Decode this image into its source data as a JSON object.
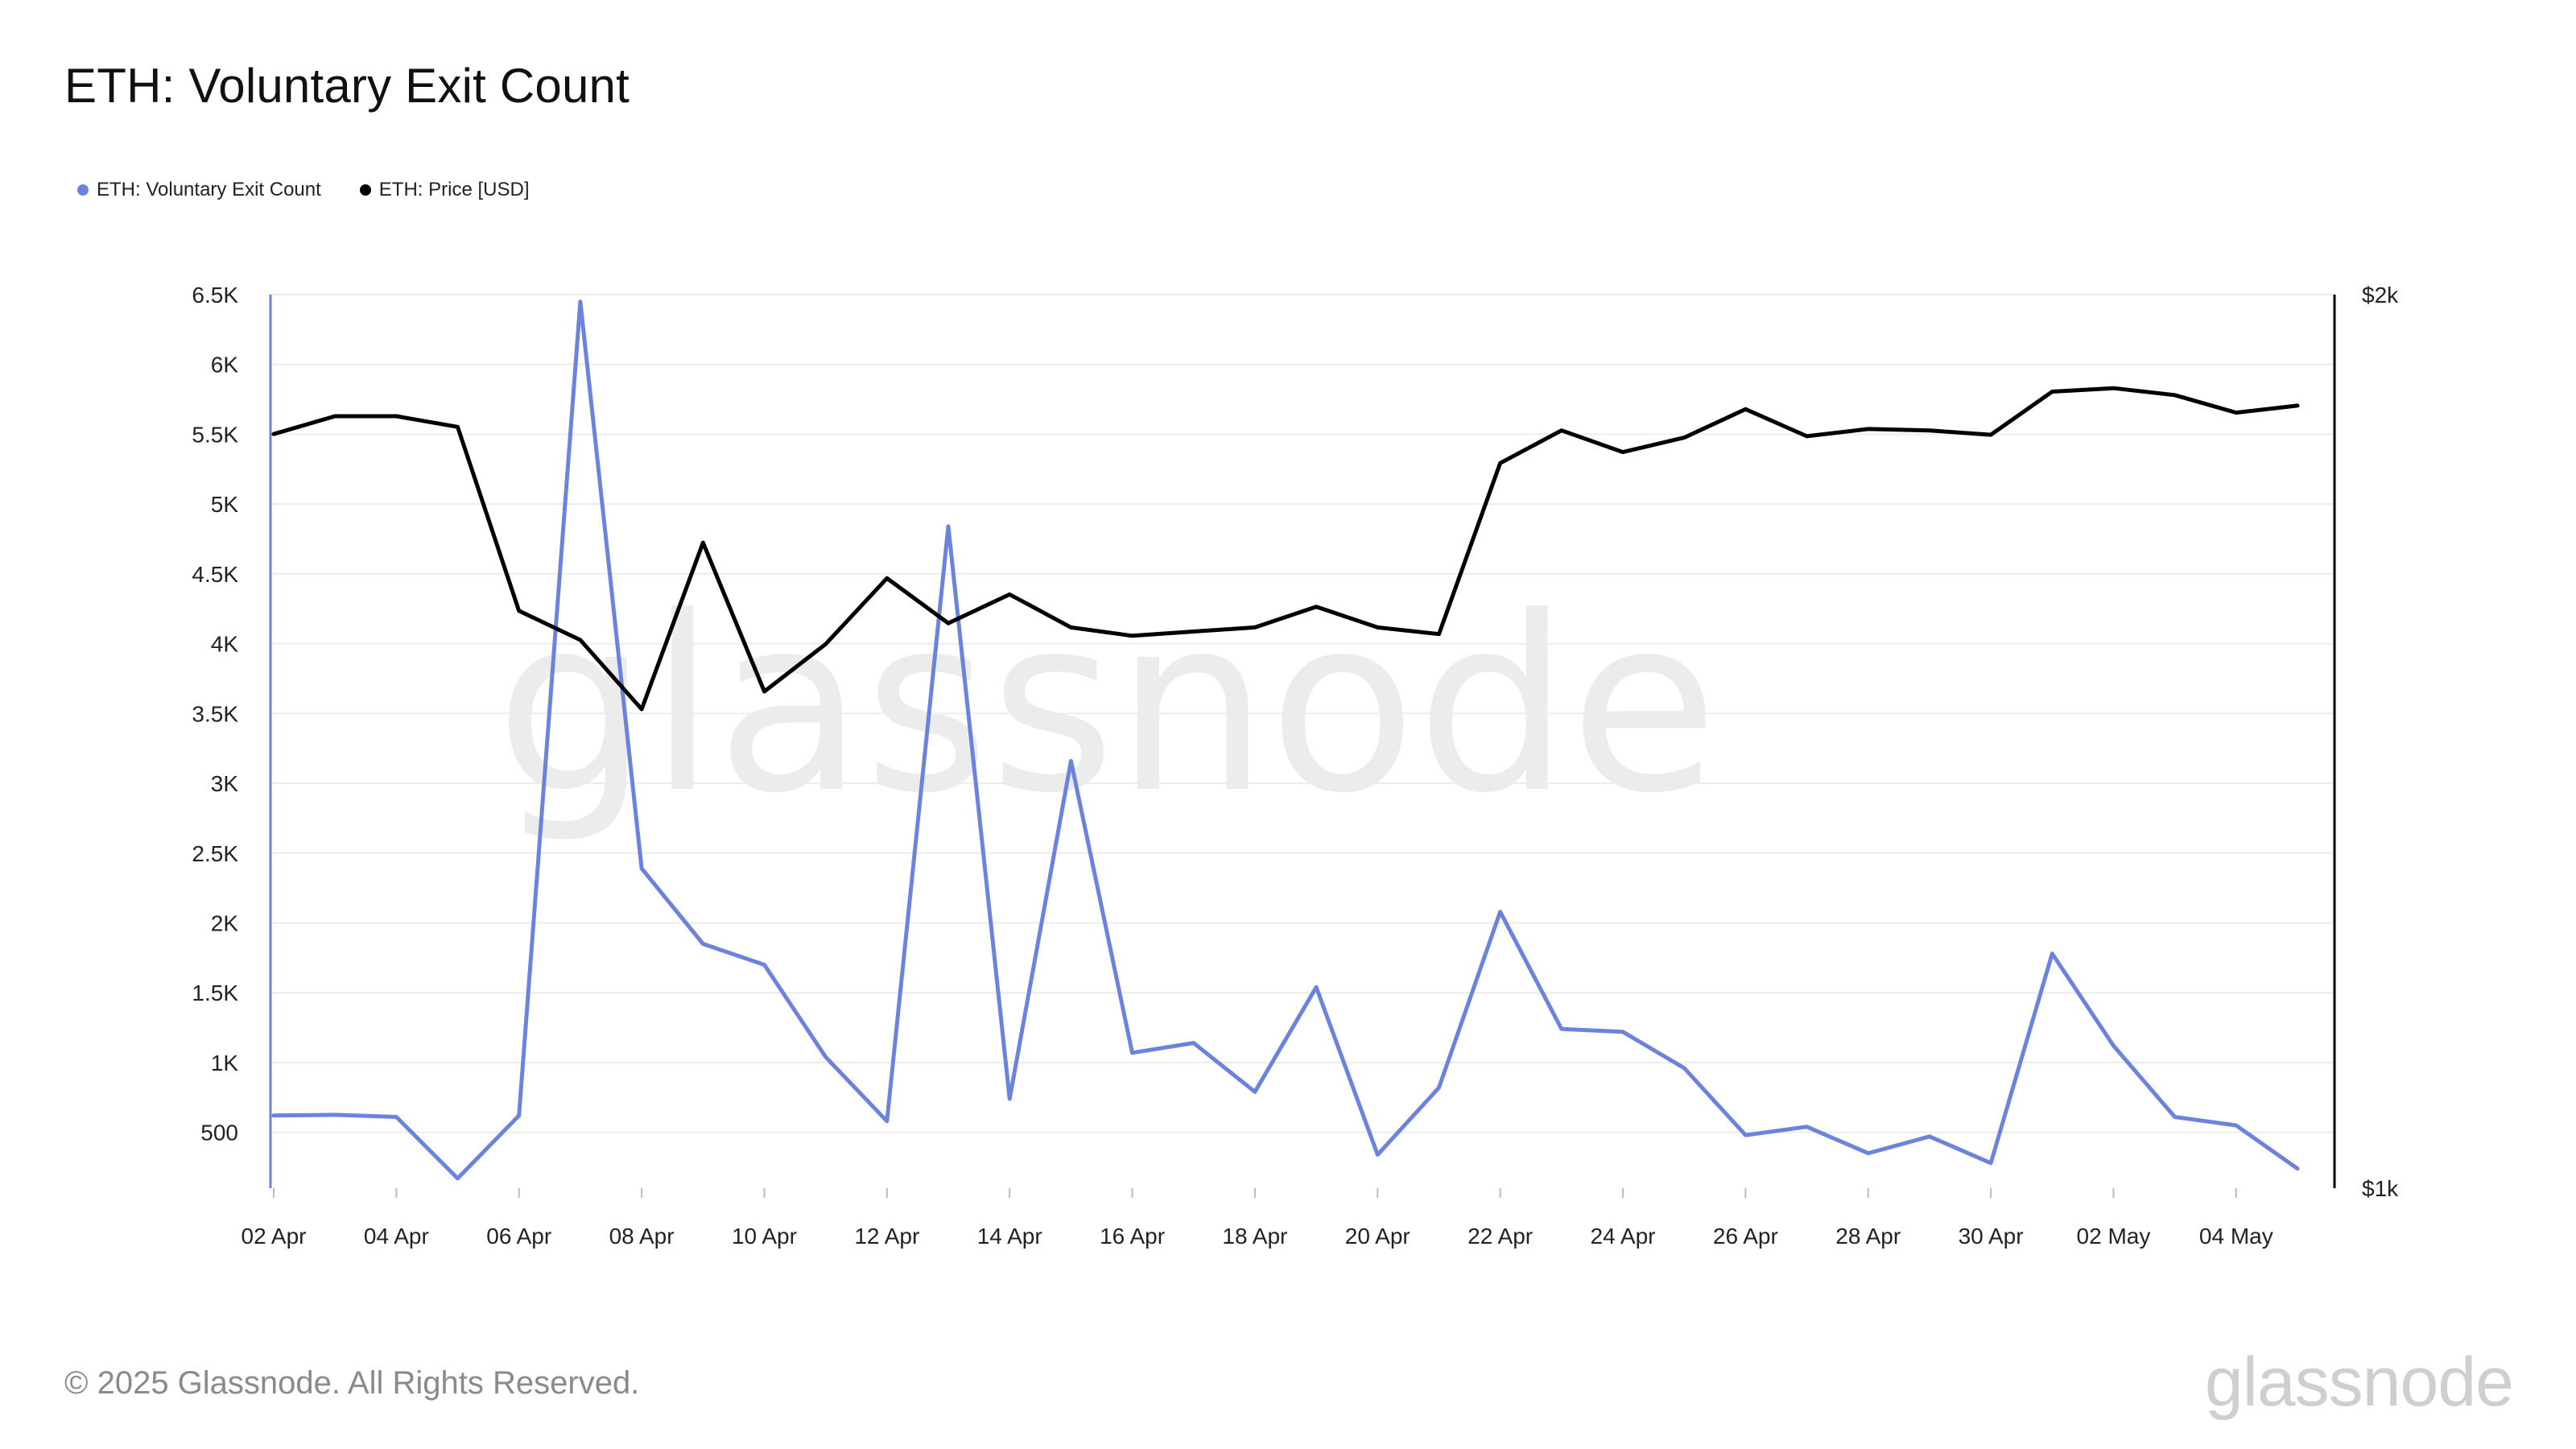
{
  "title": "ETH: Voluntary Exit Count",
  "legend": [
    {
      "label": "ETH: Voluntary Exit Count",
      "color": "#6b83dc"
    },
    {
      "label": "ETH: Price [USD]",
      "color": "#000000"
    }
  ],
  "watermark": "glassnode",
  "footer": {
    "copyright": "© 2025 Glassnode. All Rights Reserved.",
    "brand": "glassnode"
  },
  "chart_data": {
    "type": "line",
    "x": [
      "2025-04-02",
      "2025-04-03",
      "2025-04-04",
      "2025-04-05",
      "2025-04-06",
      "2025-04-07",
      "2025-04-08",
      "2025-04-09",
      "2025-04-10",
      "2025-04-11",
      "2025-04-12",
      "2025-04-13",
      "2025-04-14",
      "2025-04-15",
      "2025-04-16",
      "2025-04-17",
      "2025-04-18",
      "2025-04-19",
      "2025-04-20",
      "2025-04-21",
      "2025-04-22",
      "2025-04-23",
      "2025-04-24",
      "2025-04-25",
      "2025-04-26",
      "2025-04-27",
      "2025-04-28",
      "2025-04-29",
      "2025-04-30",
      "2025-05-01",
      "2025-05-02",
      "2025-05-03",
      "2025-05-04",
      "2025-05-05"
    ],
    "x_tick_labels": [
      "02 Apr",
      "04 Apr",
      "06 Apr",
      "08 Apr",
      "10 Apr",
      "12 Apr",
      "14 Apr",
      "16 Apr",
      "18 Apr",
      "20 Apr",
      "22 Apr",
      "24 Apr",
      "26 Apr",
      "28 Apr",
      "30 Apr",
      "02 May",
      "04 May"
    ],
    "y_left": {
      "ticks": [
        500,
        1000,
        1500,
        2000,
        2500,
        3000,
        3500,
        4000,
        4500,
        5000,
        5500,
        6000,
        6500
      ],
      "tick_labels": [
        "500",
        "1K",
        "1.5K",
        "2K",
        "2.5K",
        "3K",
        "3.5K",
        "4K",
        "4.5K",
        "5K",
        "5.5K",
        "6K",
        "6.5K"
      ],
      "range": [
        100,
        6500
      ]
    },
    "y_right": {
      "scale": "log",
      "ticks": [
        1000,
        2000
      ],
      "tick_labels": [
        "$1k",
        "$2k"
      ],
      "range": [
        1000,
        2000
      ]
    },
    "grid": true,
    "legend_position": "top-left",
    "series": [
      {
        "name": "ETH: Voluntary Exit Count",
        "axis": "left",
        "color": "#6b83dc",
        "values": [
          620,
          625,
          610,
          170,
          620,
          6450,
          2390,
          1850,
          1700,
          1040,
          580,
          4840,
          740,
          3160,
          1070,
          1140,
          790,
          1540,
          340,
          820,
          2080,
          1240,
          1220,
          960,
          480,
          540,
          350,
          470,
          280,
          1780,
          1120,
          610,
          550,
          240
        ]
      },
      {
        "name": "ETH: Price [USD]",
        "axis": "right",
        "color": "#000000",
        "values": [
          1795,
          1820,
          1820,
          1805,
          1565,
          1530,
          1450,
          1650,
          1470,
          1525,
          1605,
          1550,
          1585,
          1545,
          1535,
          1540,
          1545,
          1570,
          1545,
          1537,
          1755,
          1800,
          1770,
          1790,
          1830,
          1792,
          1802,
          1800,
          1794,
          1855,
          1860,
          1850,
          1825,
          1835
        ]
      }
    ]
  }
}
